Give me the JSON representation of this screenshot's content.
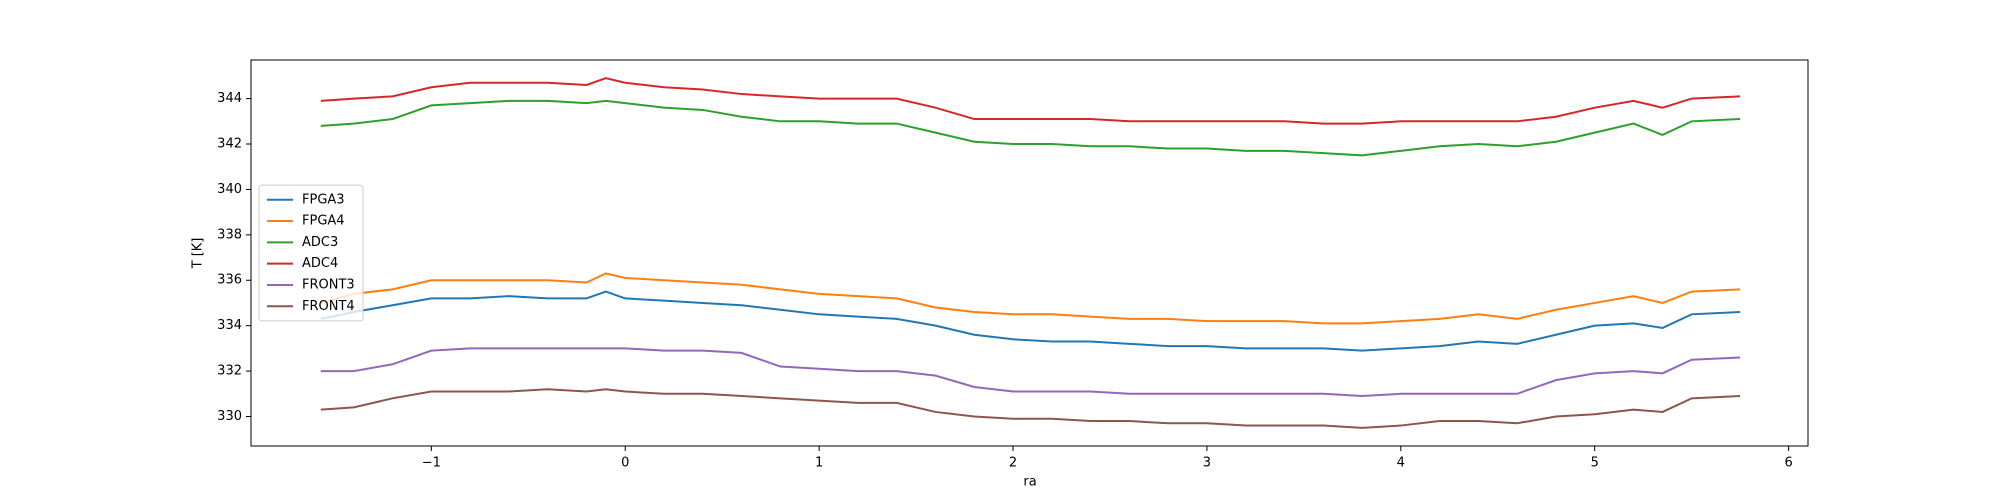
{
  "chart_data": {
    "type": "line",
    "xlabel": "ra",
    "ylabel": "T [K]",
    "x": [
      -1.57,
      -1.4,
      -1.2,
      -1.0,
      -0.8,
      -0.6,
      -0.4,
      -0.2,
      -0.1,
      0,
      0.2,
      0.4,
      0.6,
      0.8,
      1.0,
      1.2,
      1.4,
      1.6,
      1.8,
      2.0,
      2.2,
      2.4,
      2.6,
      2.8,
      3.0,
      3.2,
      3.4,
      3.6,
      3.8,
      4.0,
      4.2,
      4.4,
      4.6,
      4.8,
      5.0,
      5.2,
      5.35,
      5.5,
      5.75
    ],
    "series": [
      {
        "name": "FPGA3",
        "color": "#1f77b4",
        "values": [
          334.3,
          334.6,
          334.9,
          335.2,
          335.2,
          335.3,
          335.2,
          335.2,
          335.5,
          335.2,
          335.1,
          335.0,
          334.9,
          334.7,
          334.5,
          334.4,
          334.3,
          334.0,
          333.6,
          333.4,
          333.3,
          333.3,
          333.2,
          333.1,
          333.1,
          333.0,
          333.0,
          333.0,
          332.9,
          333.0,
          333.1,
          333.3,
          333.2,
          333.6,
          334.0,
          334.1,
          333.9,
          334.5,
          334.6
        ]
      },
      {
        "name": "FPGA4",
        "color": "#ff7f0e",
        "values": [
          335.0,
          335.4,
          335.6,
          336.0,
          336.0,
          336.0,
          336.0,
          335.9,
          336.3,
          336.1,
          336.0,
          335.9,
          335.8,
          335.6,
          335.4,
          335.3,
          335.2,
          334.8,
          334.6,
          334.5,
          334.5,
          334.4,
          334.3,
          334.3,
          334.2,
          334.2,
          334.2,
          334.1,
          334.1,
          334.2,
          334.3,
          334.5,
          334.3,
          334.7,
          335.0,
          335.3,
          335.0,
          335.5,
          335.6
        ]
      },
      {
        "name": "ADC3",
        "color": "#2ca02c",
        "values": [
          342.8,
          342.9,
          343.1,
          343.7,
          343.8,
          343.9,
          343.9,
          343.8,
          343.9,
          343.8,
          343.6,
          343.5,
          343.2,
          343.0,
          343.0,
          342.9,
          342.9,
          342.5,
          342.1,
          342.0,
          342.0,
          341.9,
          341.9,
          341.8,
          341.8,
          341.7,
          341.7,
          341.6,
          341.5,
          341.7,
          341.9,
          342.0,
          341.9,
          342.1,
          342.5,
          342.9,
          342.4,
          343.0,
          343.1
        ]
      },
      {
        "name": "ADC4",
        "color": "#d62728",
        "values": [
          343.9,
          344.0,
          344.1,
          344.5,
          344.7,
          344.7,
          344.7,
          344.6,
          344.9,
          344.7,
          344.5,
          344.4,
          344.2,
          344.1,
          344.0,
          344.0,
          344.0,
          343.6,
          343.1,
          343.1,
          343.1,
          343.1,
          343.0,
          343.0,
          343.0,
          343.0,
          343.0,
          342.9,
          342.9,
          343.0,
          343.0,
          343.0,
          343.0,
          343.2,
          343.6,
          343.9,
          343.6,
          344.0,
          344.1
        ]
      },
      {
        "name": "FRONT3",
        "color": "#9467bd",
        "values": [
          332.0,
          332.0,
          332.3,
          332.9,
          333.0,
          333.0,
          333.0,
          333.0,
          333.0,
          333.0,
          332.9,
          332.9,
          332.8,
          332.2,
          332.1,
          332.0,
          332.0,
          331.8,
          331.3,
          331.1,
          331.1,
          331.1,
          331.0,
          331.0,
          331.0,
          331.0,
          331.0,
          331.0,
          330.9,
          331.0,
          331.0,
          331.0,
          331.0,
          331.6,
          331.9,
          332.0,
          331.9,
          332.5,
          332.6
        ]
      },
      {
        "name": "FRONT4",
        "color": "#8c564b",
        "values": [
          330.3,
          330.4,
          330.8,
          331.1,
          331.1,
          331.1,
          331.2,
          331.1,
          331.2,
          331.1,
          331.0,
          331.0,
          330.9,
          330.8,
          330.7,
          330.6,
          330.6,
          330.2,
          330.0,
          329.9,
          329.9,
          329.8,
          329.8,
          329.7,
          329.7,
          329.6,
          329.6,
          329.6,
          329.5,
          329.6,
          329.8,
          329.8,
          329.7,
          330.0,
          330.1,
          330.3,
          330.2,
          330.8,
          330.9
        ]
      }
    ],
    "xlim": [
      -1.93,
      6.1
    ],
    "xticks": [
      {
        "value": -1,
        "label": "−1"
      },
      0,
      1,
      2,
      3,
      4,
      5,
      6
    ],
    "ylim": [
      328.7,
      345.7
    ],
    "yticks": [
      330,
      332,
      334,
      336,
      338,
      340,
      342,
      344
    ],
    "legend": "center left"
  }
}
